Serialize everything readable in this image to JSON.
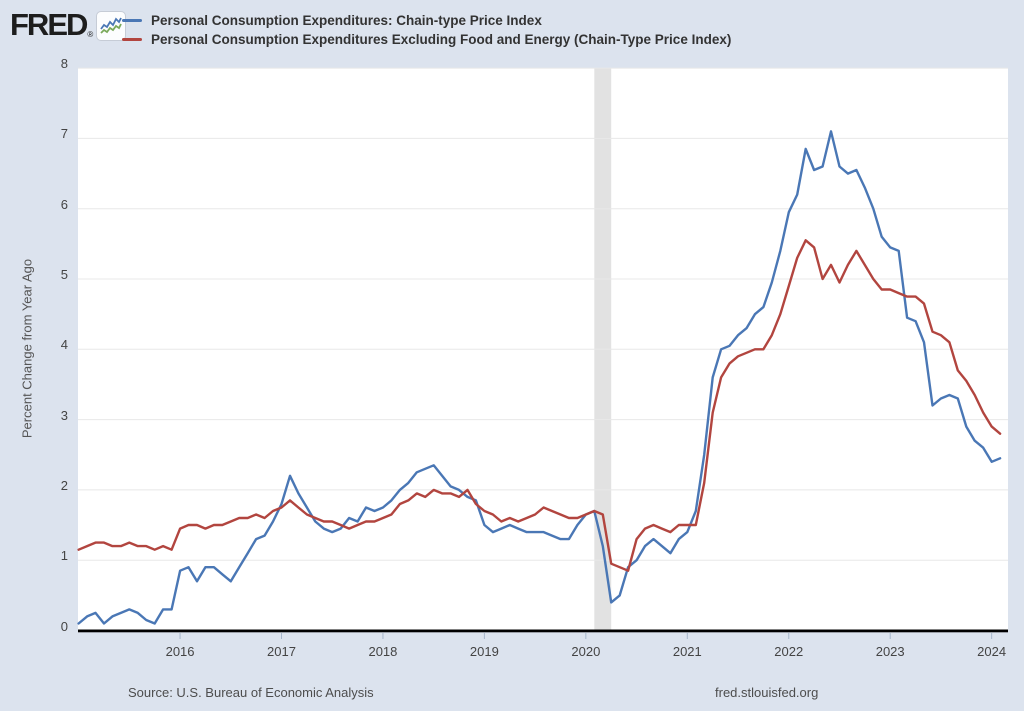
{
  "header": {
    "logo_text": "FRED",
    "registered_mark": "®",
    "legend": [
      {
        "label": "Personal Consumption Expenditures: Chain-type Price Index",
        "color": "#4a77b5"
      },
      {
        "label": "Personal Consumption Expenditures Excluding Food and Energy (Chain-Type Price Index)",
        "color": "#b2453f"
      }
    ]
  },
  "footer": {
    "source": "Source: U.S. Bureau of Economic Analysis",
    "site_link": "fred.stlouisfed.org"
  },
  "chart_data": {
    "type": "line",
    "title": "",
    "xlabel": "",
    "ylabel": "Percent Change from Year Ago",
    "ylim": [
      0,
      8
    ],
    "y_ticks": [
      0,
      1,
      2,
      3,
      4,
      5,
      6,
      7,
      8
    ],
    "x_ticks": [
      2016,
      2017,
      2018,
      2019,
      2020,
      2021,
      2022,
      2023,
      2024
    ],
    "grid": true,
    "legend_position": "top",
    "frequency": "monthly",
    "start_month": "2015-01",
    "end_month": "2024-02",
    "recession_band": {
      "start": "2020-02",
      "end": "2020-04"
    },
    "colors": {
      "background": "#dce3ee",
      "plot_background": "#ffffff",
      "gridline": "#e8e8e8",
      "axis": "#000000",
      "recession_band": "#e2e2e2",
      "tick_mark": "#a6b6cb",
      "icon_line_blue": "#4a77b5",
      "icon_line_green": "#7aa95b"
    },
    "series": [
      {
        "id": "pce-line",
        "name": "Personal Consumption Expenditures: Chain-type Price Index",
        "color": "#4a77b5",
        "values": [
          0.1,
          0.2,
          0.25,
          0.1,
          0.2,
          0.25,
          0.3,
          0.25,
          0.15,
          0.1,
          0.3,
          0.3,
          0.85,
          0.9,
          0.7,
          0.9,
          0.9,
          0.8,
          0.7,
          0.9,
          1.1,
          1.3,
          1.35,
          1.55,
          1.8,
          2.2,
          1.95,
          1.75,
          1.55,
          1.45,
          1.4,
          1.45,
          1.6,
          1.55,
          1.75,
          1.7,
          1.75,
          1.85,
          2.0,
          2.1,
          2.25,
          2.3,
          2.35,
          2.2,
          2.05,
          2.0,
          1.9,
          1.85,
          1.5,
          1.4,
          1.45,
          1.5,
          1.45,
          1.4,
          1.4,
          1.4,
          1.35,
          1.3,
          1.3,
          1.5,
          1.65,
          1.7,
          1.2,
          0.4,
          0.5,
          0.9,
          1.0,
          1.2,
          1.3,
          1.2,
          1.1,
          1.3,
          1.4,
          1.7,
          2.5,
          3.6,
          4.0,
          4.05,
          4.2,
          4.3,
          4.5,
          4.6,
          4.95,
          5.4,
          5.95,
          6.2,
          6.85,
          6.55,
          6.6,
          7.1,
          6.6,
          6.5,
          6.55,
          6.3,
          6.0,
          5.6,
          5.45,
          5.4,
          4.45,
          4.4,
          4.1,
          3.2,
          3.3,
          3.35,
          3.3,
          2.9,
          2.7,
          2.6,
          2.4,
          2.45
        ]
      },
      {
        "id": "core-pce-line",
        "name": "Personal Consumption Expenditures Excluding Food and Energy (Chain-Type Price Index)",
        "color": "#b2453f",
        "values": [
          1.15,
          1.2,
          1.25,
          1.25,
          1.2,
          1.2,
          1.25,
          1.2,
          1.2,
          1.15,
          1.2,
          1.15,
          1.45,
          1.5,
          1.5,
          1.45,
          1.5,
          1.5,
          1.55,
          1.6,
          1.6,
          1.65,
          1.6,
          1.7,
          1.75,
          1.85,
          1.75,
          1.65,
          1.6,
          1.55,
          1.55,
          1.5,
          1.45,
          1.5,
          1.55,
          1.55,
          1.6,
          1.65,
          1.8,
          1.85,
          1.95,
          1.9,
          2.0,
          1.95,
          1.95,
          1.9,
          2.0,
          1.8,
          1.7,
          1.65,
          1.55,
          1.6,
          1.55,
          1.6,
          1.65,
          1.75,
          1.7,
          1.65,
          1.6,
          1.6,
          1.65,
          1.7,
          1.65,
          0.95,
          0.9,
          0.85,
          1.3,
          1.45,
          1.5,
          1.45,
          1.4,
          1.5,
          1.5,
          1.5,
          2.1,
          3.1,
          3.6,
          3.8,
          3.9,
          3.95,
          4.0,
          4.0,
          4.2,
          4.5,
          4.9,
          5.3,
          5.55,
          5.45,
          5.0,
          5.2,
          4.95,
          5.2,
          5.4,
          5.2,
          5.0,
          4.85,
          4.85,
          4.8,
          4.75,
          4.75,
          4.65,
          4.25,
          4.2,
          4.1,
          3.7,
          3.55,
          3.35,
          3.1,
          2.9,
          2.8
        ]
      }
    ]
  }
}
